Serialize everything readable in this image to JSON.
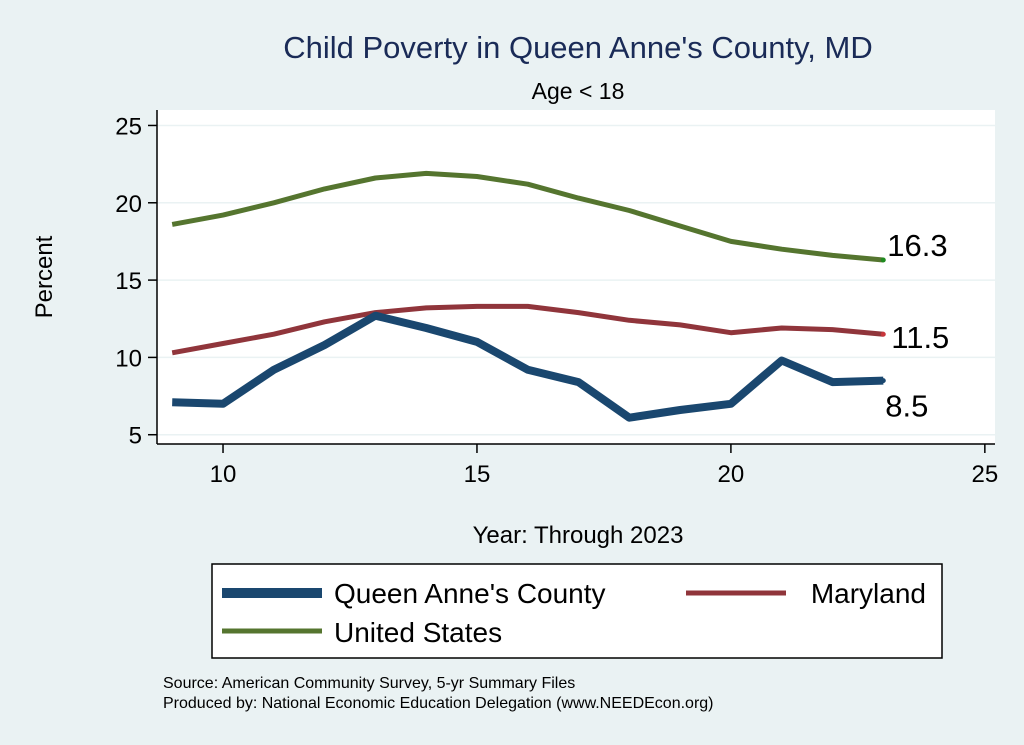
{
  "chart_data": {
    "type": "line",
    "title": "Child Poverty in Queen Anne's County, MD",
    "subtitle": "Age < 18",
    "xlabel": "Year: Through 2023",
    "ylabel": "Percent",
    "xlim": [
      8.7,
      25.2
    ],
    "ylim": [
      4.4,
      26.0
    ],
    "xticks": [
      10,
      15,
      20,
      25
    ],
    "yticks": [
      5,
      10,
      15,
      20,
      25
    ],
    "grid": "y-major",
    "legend_position": "bottom",
    "series": [
      {
        "name": "Queen Anne's County",
        "color": "#1a476f",
        "x": [
          9,
          10,
          11,
          12,
          13,
          14,
          15,
          16,
          17,
          18,
          19,
          20,
          21,
          22,
          23
        ],
        "values": [
          7.1,
          7.0,
          9.2,
          10.8,
          12.7,
          11.9,
          11.0,
          9.2,
          8.4,
          6.1,
          6.6,
          7.0,
          9.8,
          8.4,
          8.5
        ],
        "end_label": "8.5"
      },
      {
        "name": "Maryland",
        "color": "#90353b",
        "x": [
          9,
          10,
          11,
          12,
          13,
          14,
          15,
          16,
          17,
          18,
          19,
          20,
          21,
          22,
          23
        ],
        "values": [
          10.3,
          10.9,
          11.5,
          12.3,
          12.9,
          13.2,
          13.3,
          13.3,
          12.9,
          12.4,
          12.1,
          11.6,
          11.9,
          11.8,
          11.5
        ],
        "end_label": "11.5"
      },
      {
        "name": "United States",
        "color": "#55752f",
        "x": [
          9,
          10,
          11,
          12,
          13,
          14,
          15,
          16,
          17,
          18,
          19,
          20,
          21,
          22,
          23
        ],
        "values": [
          18.6,
          19.2,
          20.0,
          20.9,
          21.6,
          21.9,
          21.7,
          21.2,
          20.3,
          19.5,
          18.5,
          17.5,
          17.0,
          16.6,
          16.3
        ],
        "end_label": "16.3"
      }
    ],
    "notes": [
      "Source: American Community Survey, 5-yr Summary Files",
      "Produced by: National Economic Education Delegation (www.NEEDEcon.org)"
    ]
  },
  "colors": {
    "page_background": "#eaf2f3",
    "plot_background": "#ffffff",
    "title": "#1a2b57",
    "gridline": "#eaf2f3",
    "axis": "#000000",
    "dot_queen_annes": "#1a476f",
    "dot_maryland": "#c8353b",
    "dot_us": "#1f8a1f"
  }
}
